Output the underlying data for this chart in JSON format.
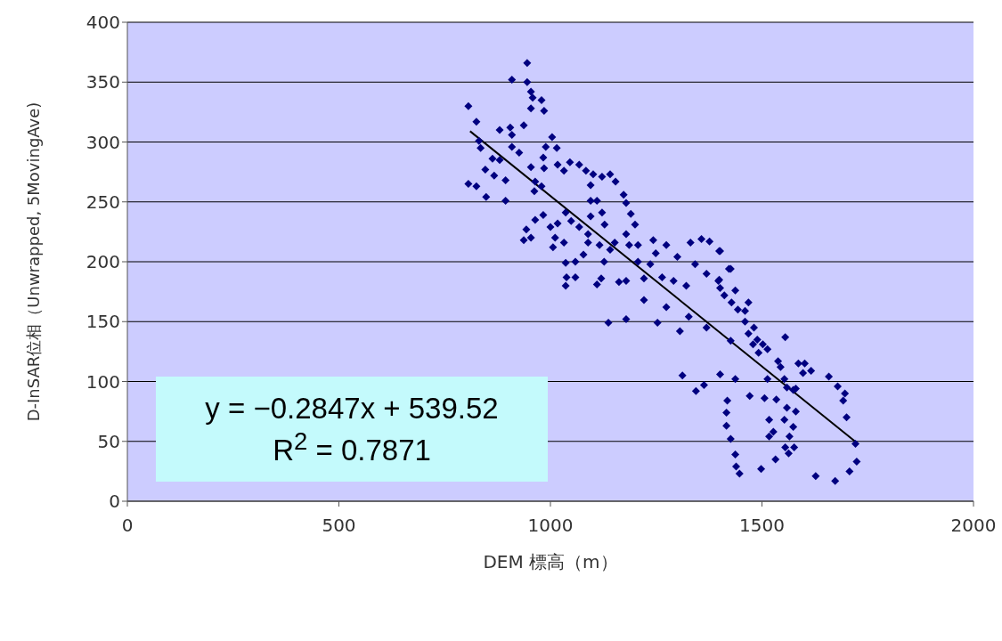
{
  "chart_data": {
    "type": "scatter",
    "xlabel": "DEM  標高（m）",
    "ylabel": "D-InSAR位相（Unwrapped, 5MovingAve)",
    "xlim": [
      0,
      2000
    ],
    "xticks": [
      0,
      500,
      1000,
      1500,
      2000
    ],
    "ylim": [
      0,
      400
    ],
    "yticks": [
      0,
      50,
      100,
      150,
      200,
      250,
      300,
      350,
      400
    ],
    "grid": "y",
    "legend": false,
    "annotations": [
      "y = −0.2847x + 539.52",
      "R$^{2}$ = 0.7871"
    ],
    "series": [
      {
        "marker": "diamond",
        "color": "#000080",
        "x": [
          945,
          909,
          945,
          954,
          958,
          979,
          954,
          985,
          806,
          825,
          937,
          880,
          905,
          909,
          831,
          835,
          909,
          926,
          1004,
          989,
          1015,
          863,
          880,
          846,
          867,
          894,
          806,
          825,
          848,
          894,
          954,
          985,
          983,
          1017,
          1046,
          1068,
          1032,
          1084,
          1101,
          1122,
          1141,
          1095,
          1154,
          964,
          979,
          962,
          1095,
          1110,
          1173,
          1179,
          1190,
          983,
          964,
          943,
          937,
          954,
          1000,
          1017,
          1036,
          1049,
          1011,
          1006,
          1032,
          1068,
          1089,
          1095,
          1122,
          1128,
          1089,
          1078,
          1036,
          1059,
          1116,
          1141,
          1127,
          1152,
          1179,
          1200,
          1186,
          1207,
          1243,
          1274,
          1249,
          1300,
          1331,
          1357,
          1376,
          1399,
          1422,
          1342,
          1369,
          1397,
          1038,
          1059,
          1036,
          1120,
          1110,
          1162,
          1179,
          1221,
          1264,
          1291,
          1321,
          1207,
          1236,
          1221,
          1274,
          1327,
          1369,
          1179,
          1137,
          1253,
          1306,
          1401,
          1426,
          1399,
          1401,
          1411,
          1437,
          1428,
          1468,
          1443,
          1460,
          1460,
          1481,
          1468,
          1489,
          1479,
          1502,
          1492,
          1513,
          1555,
          1426,
          1538,
          1544,
          1586,
          1601,
          1616,
          1597,
          1658,
          1679,
          1696,
          1692,
          1700,
          1721,
          1724,
          1707,
          1673,
          1627,
          1553,
          1559,
          1574,
          1534,
          1513,
          1580,
          1559,
          1580,
          1553,
          1574,
          1565,
          1517,
          1527,
          1517,
          1555,
          1576,
          1563,
          1532,
          1498,
          1471,
          1506,
          1437,
          1401,
          1418,
          1416,
          1416,
          1426,
          1437,
          1439,
          1447,
          1312,
          1344,
          1363
        ],
        "values": [
          366,
          352,
          350,
          342,
          337,
          335,
          328,
          326,
          330,
          317,
          314,
          310,
          312,
          306,
          301,
          295,
          296,
          291,
          304,
          296,
          295,
          286,
          285,
          277,
          272,
          268,
          265,
          263,
          254,
          251,
          279,
          278,
          287,
          281,
          283,
          281,
          276,
          276,
          273,
          271,
          273,
          264,
          267,
          267,
          263,
          259,
          251,
          251,
          256,
          249,
          240,
          239,
          235,
          227,
          218,
          220,
          229,
          232,
          241,
          234,
          220,
          212,
          216,
          229,
          223,
          238,
          241,
          231,
          216,
          206,
          199,
          200,
          214,
          210,
          200,
          216,
          223,
          231,
          214,
          214,
          218,
          214,
          207,
          204,
          216,
          219,
          217,
          209,
          194,
          198,
          190,
          184,
          187,
          187,
          180,
          186,
          181,
          183,
          184,
          186,
          187,
          184,
          180,
          200,
          198,
          168,
          162,
          154,
          145,
          152,
          149,
          149,
          142,
          209,
          194,
          185,
          178,
          172,
          176,
          166,
          166,
          160,
          159,
          150,
          145,
          140,
          135,
          131,
          131,
          124,
          127,
          137,
          134,
          117,
          112,
          115,
          115,
          109,
          107,
          104,
          96,
          90,
          84,
          70,
          48,
          33,
          25,
          17,
          21,
          102,
          95,
          93,
          85,
          102,
          94,
          78,
          75,
          68,
          62,
          54,
          68,
          58,
          54,
          45,
          45,
          40,
          35,
          27,
          88,
          86,
          102,
          106,
          84,
          74,
          63,
          52,
          39,
          29,
          23,
          105,
          92,
          97
        ]
      },
      {
        "type": "line",
        "color": "#000000",
        "x": [
          810,
          1720
        ],
        "values": [
          309,
          50
        ]
      }
    ]
  }
}
